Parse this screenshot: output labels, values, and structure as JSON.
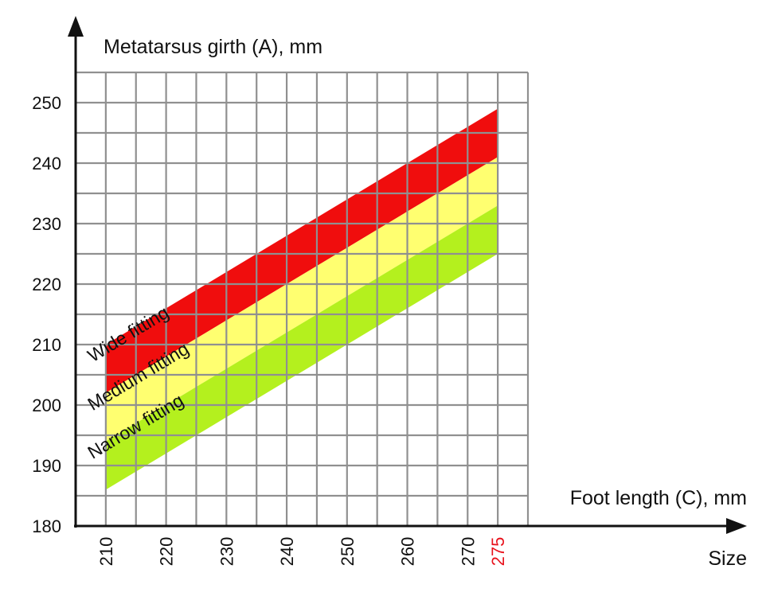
{
  "chart_data": {
    "type": "area",
    "ylabel": "Metatarsus girth (A), mm",
    "xlabel": "Foot length (C), mm",
    "size_label": "Size",
    "x_ticks": [
      "210",
      "220",
      "230",
      "240",
      "250",
      "260",
      "270",
      "275"
    ],
    "y_ticks": [
      "180",
      "190",
      "200",
      "210",
      "220",
      "230",
      "240",
      "250"
    ],
    "xlim": [
      205,
      280
    ],
    "ylim": [
      180,
      255
    ],
    "grid": true,
    "highlight_tick": "275",
    "highlight_color": "#e8121c",
    "bands": [
      {
        "name": "Wide fitting",
        "color": "#f00d0d",
        "x": [
          210,
          275
        ],
        "lower": [
          202,
          241
        ],
        "upper": [
          210,
          249
        ]
      },
      {
        "name": "Medium fitting",
        "color": "#ffff70",
        "x": [
          210,
          275
        ],
        "lower": [
          194,
          233
        ],
        "upper": [
          202,
          241
        ]
      },
      {
        "name": "Narrow fitting",
        "color": "#b4f01e",
        "x": [
          210,
          275
        ],
        "lower": [
          186,
          225
        ],
        "upper": [
          194,
          233
        ]
      }
    ],
    "colors": {
      "grid": "#909090",
      "axis": "#111111",
      "text": "#111111"
    }
  }
}
